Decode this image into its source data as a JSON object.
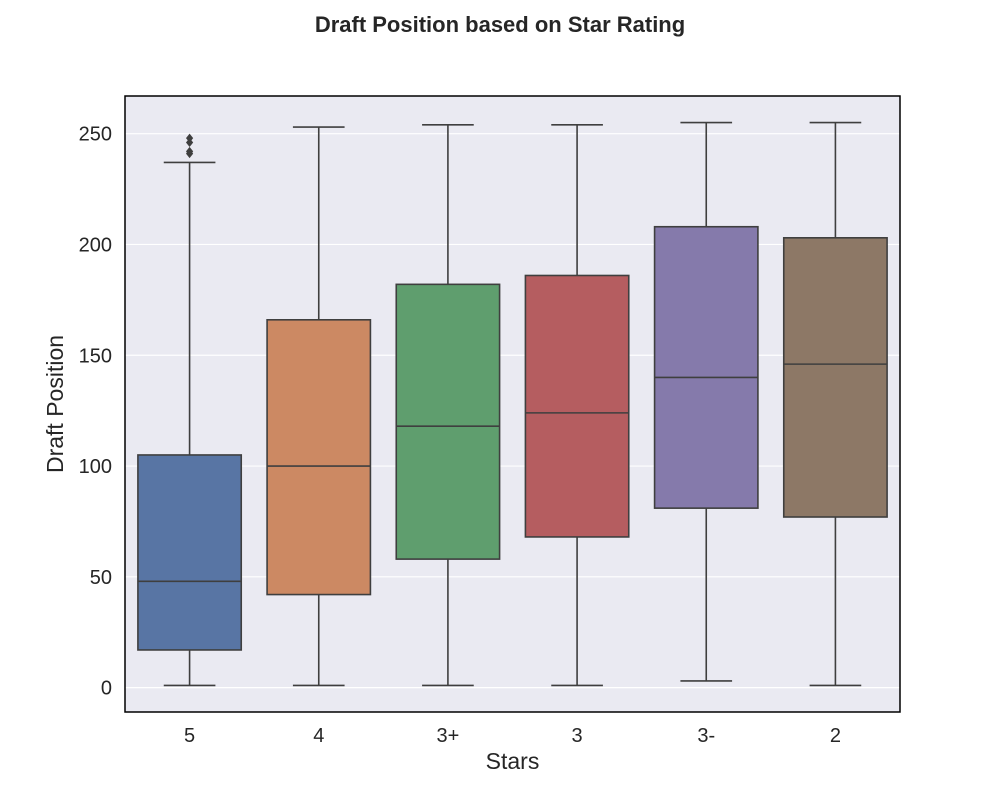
{
  "chart_data": {
    "type": "box",
    "title": "Draft Position based on Star Rating",
    "xlabel": "Stars",
    "ylabel": "Draft Position",
    "ylim": [
      -11,
      267
    ],
    "yticks": [
      0,
      50,
      100,
      150,
      200,
      250
    ],
    "grid": true,
    "legend": "none",
    "categories": [
      "5",
      "4",
      "3+",
      "3",
      "3-",
      "2"
    ],
    "boxes": [
      {
        "category": "5",
        "whisker_low": 1,
        "q1": 17,
        "median": 48,
        "q3": 105,
        "whisker_high": 237,
        "outliers": [
          241,
          242,
          246,
          248
        ],
        "color": "#5875a4"
      },
      {
        "category": "4",
        "whisker_low": 1,
        "q1": 42,
        "median": 100,
        "q3": 166,
        "whisker_high": 253,
        "outliers": [],
        "color": "#cc8963"
      },
      {
        "category": "3+",
        "whisker_low": 1,
        "q1": 58,
        "median": 118,
        "q3": 182,
        "whisker_high": 254,
        "outliers": [],
        "color": "#5f9e6e"
      },
      {
        "category": "3",
        "whisker_low": 1,
        "q1": 68,
        "median": 124,
        "q3": 186,
        "whisker_high": 254,
        "outliers": [],
        "color": "#b55d60"
      },
      {
        "category": "3-",
        "whisker_low": 3,
        "q1": 81,
        "median": 140,
        "q3": 208,
        "whisker_high": 255,
        "outliers": [],
        "color": "#857aab"
      },
      {
        "category": "2",
        "whisker_low": 1,
        "q1": 77,
        "median": 146,
        "q3": 203,
        "whisker_high": 255,
        "outliers": [],
        "color": "#8d7866"
      }
    ]
  },
  "colors": {
    "plot_background": "#eaeaf2",
    "grid": "#ffffff",
    "lines": "#3f3f3f",
    "frame": "#000000"
  }
}
